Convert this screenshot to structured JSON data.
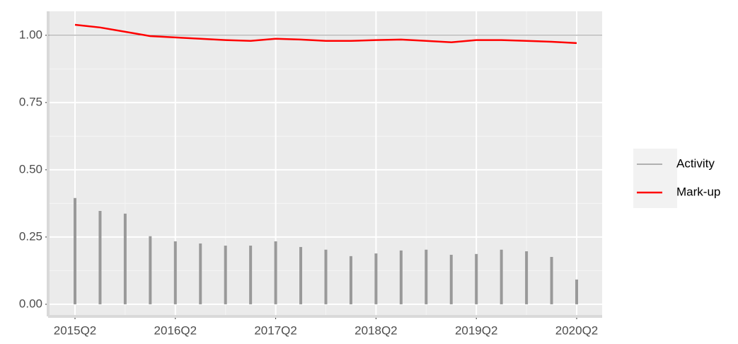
{
  "chart_data": {
    "type": "combo",
    "categories": [
      "2015Q2",
      null,
      null,
      null,
      "2016Q2",
      null,
      null,
      null,
      "2017Q2",
      null,
      null,
      null,
      "2018Q2",
      null,
      null,
      null,
      "2019Q2",
      null,
      null,
      null,
      "2020Q2"
    ],
    "series": [
      {
        "name": "Activity",
        "type": "bar",
        "color": "#999999",
        "values": [
          0.395,
          0.347,
          0.337,
          0.253,
          0.234,
          0.226,
          0.218,
          0.218,
          0.234,
          0.213,
          0.203,
          0.179,
          0.189,
          0.2,
          0.203,
          0.184,
          0.187,
          0.203,
          0.197,
          0.176,
          0.092
        ]
      },
      {
        "name": "Mark-up",
        "type": "line",
        "color": "#ff0000",
        "values": [
          1.039,
          1.029,
          1.013,
          0.997,
          0.992,
          0.987,
          0.982,
          0.979,
          0.987,
          0.984,
          0.979,
          0.979,
          0.982,
          0.984,
          0.979,
          0.974,
          0.982,
          0.982,
          0.979,
          0.976,
          0.971
        ]
      }
    ],
    "reference_line": 1,
    "ylim": [
      -0.045,
      1.089
    ],
    "yticks": [
      {
        "value": 0,
        "label": "0.00"
      },
      {
        "value": 0.25,
        "label": "0.25"
      },
      {
        "value": 0.5,
        "label": "0.50"
      },
      {
        "value": 0.75,
        "label": "0.75"
      },
      {
        "value": 1,
        "label": "1.00"
      }
    ],
    "grid": true
  }
}
